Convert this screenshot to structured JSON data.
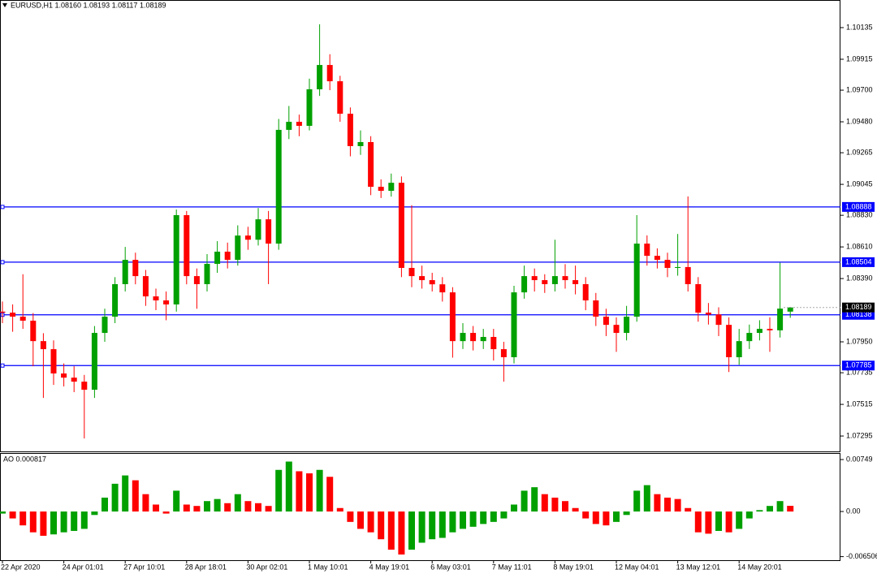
{
  "chart_data": [
    {
      "type": "candlestick",
      "title": "EURUSD,H1  1.08160 1.08193 1.08117 1.08189",
      "categories": [
        "22 Apr 2020",
        null,
        null,
        null,
        null,
        null,
        "24 Apr 01:01",
        null,
        null,
        null,
        null,
        null,
        "27 Apr 10:01",
        null,
        null,
        null,
        null,
        null,
        "28 Apr 18:01",
        null,
        null,
        null,
        null,
        null,
        "30 Apr 02:01",
        null,
        null,
        null,
        null,
        null,
        "1 May 10:01",
        null,
        null,
        null,
        null,
        null,
        "4 May 19:01",
        null,
        null,
        null,
        null,
        null,
        "6 May 03:01",
        null,
        null,
        null,
        null,
        null,
        "7 May 11:01",
        null,
        null,
        null,
        null,
        null,
        "8 May 19:01",
        null,
        null,
        null,
        null,
        null,
        "12 May 04:01",
        null,
        null,
        null,
        null,
        null,
        "13 May 12:01",
        null,
        null,
        null,
        null,
        null,
        "14 May 20:01",
        null,
        null,
        null,
        null,
        null
      ],
      "open": [
        1.0816,
        1.08153,
        1.08125,
        1.08097,
        1.07955,
        1.07899,
        1.0773,
        1.07701,
        1.07673,
        1.07617,
        1.08012,
        1.08125,
        1.08351,
        1.0852,
        1.08407,
        1.08266,
        1.08238,
        1.0821,
        1.08831,
        1.08407,
        1.08351,
        1.08492,
        1.08577,
        1.0852,
        1.08689,
        1.0866,
        1.08802,
        1.08633,
        1.09424,
        1.0948,
        1.09452,
        1.09706,
        1.09875,
        1.09762,
        1.09536,
        1.09311,
        1.09339,
        1.09028,
        1.09,
        1.09056,
        1.08464,
        1.08407,
        1.08379,
        1.0835,
        1.08294,
        1.07955,
        1.08012,
        1.07955,
        1.07984,
        1.07899,
        1.07843,
        1.08294,
        1.08407,
        1.08379,
        1.08351,
        1.08407,
        1.08379,
        1.08351,
        1.08238,
        1.08125,
        1.08068,
        1.08012,
        1.08125,
        1.08633,
        1.08548,
        1.0852,
        1.08464,
        1.0847,
        1.08351,
        1.08153,
        1.0814,
        1.08068,
        1.07843,
        1.07955,
        1.08012,
        1.0804,
        1.0803,
        1.0816
      ],
      "high": [
        1.0823,
        1.0821,
        1.0842,
        1.0815,
        1.0801,
        1.0796,
        1.078,
        1.0778,
        1.0772,
        1.0806,
        1.0818,
        1.084,
        1.0861,
        1.0857,
        1.0845,
        1.0832,
        1.083,
        1.0887,
        1.0886,
        1.0846,
        1.0856,
        1.0865,
        1.0864,
        1.0876,
        1.0875,
        1.0888,
        1.0886,
        1.095,
        1.0959,
        1.0953,
        1.0978,
        1.10158,
        1.0995,
        1.098,
        1.0958,
        1.0942,
        1.0938,
        1.0908,
        1.0912,
        1.091,
        1.089,
        1.0848,
        1.0843,
        1.084,
        1.0833,
        1.0808,
        1.0806,
        1.0804,
        1.0804,
        1.0795,
        1.0834,
        1.0848,
        1.0846,
        1.0842,
        1.0866,
        1.0849,
        1.0848,
        1.084,
        1.0829,
        1.0818,
        1.0812,
        1.082,
        1.08831,
        1.0869,
        1.086,
        1.0857,
        1.087,
        1.08961,
        1.084,
        1.0822,
        1.0819,
        1.0812,
        1.0804,
        1.0807,
        1.081,
        1.0812,
        1.085,
        1.08193
      ],
      "low": [
        1.0808,
        1.0802,
        1.0804,
        1.0778,
        1.0756,
        1.0765,
        1.0764,
        1.076,
        1.07278,
        1.0756,
        1.0795,
        1.0808,
        1.083,
        1.0835,
        1.082,
        1.0817,
        1.081,
        1.0816,
        1.0835,
        1.0818,
        1.083,
        1.0843,
        1.0846,
        1.0848,
        1.0859,
        1.0862,
        1.08351,
        1.0859,
        1.0936,
        1.0938,
        1.0942,
        1.0966,
        1.097,
        1.0948,
        1.0924,
        1.0925,
        1.0897,
        1.0895,
        1.0896,
        1.084,
        1.0833,
        1.0832,
        1.083,
        1.0823,
        1.0784,
        1.079,
        1.0789,
        1.079,
        1.0782,
        1.07673,
        1.078,
        1.0825,
        1.083,
        1.0829,
        1.083,
        1.0832,
        1.0828,
        1.0817,
        1.0806,
        1.0799,
        1.0788,
        1.0796,
        1.0809,
        1.0848,
        1.0846,
        1.084,
        1.0841,
        1.083,
        1.0809,
        1.0807,
        1.0799,
        1.0774,
        1.0779,
        1.079,
        1.0796,
        1.0788,
        1.0798,
        1.08117
      ],
      "close": [
        1.08153,
        1.08125,
        1.08097,
        1.07955,
        1.07899,
        1.0773,
        1.07701,
        1.07673,
        1.07617,
        1.08012,
        1.08125,
        1.08351,
        1.0852,
        1.08407,
        1.08266,
        1.08238,
        1.0821,
        1.08831,
        1.08407,
        1.08351,
        1.08492,
        1.08577,
        1.0852,
        1.08689,
        1.0866,
        1.08802,
        1.08633,
        1.09424,
        1.0948,
        1.09452,
        1.09706,
        1.09875,
        1.09762,
        1.09536,
        1.09311,
        1.09339,
        1.09028,
        1.09,
        1.09056,
        1.08464,
        1.08407,
        1.08379,
        1.0835,
        1.08294,
        1.07955,
        1.08012,
        1.07955,
        1.07984,
        1.07899,
        1.07843,
        1.08294,
        1.08407,
        1.08379,
        1.08351,
        1.08407,
        1.08379,
        1.08351,
        1.08238,
        1.08125,
        1.08068,
        1.08012,
        1.08125,
        1.08633,
        1.08548,
        1.0852,
        1.08464,
        1.0847,
        1.08351,
        1.08153,
        1.0814,
        1.08068,
        1.07843,
        1.07955,
        1.08012,
        1.0804,
        1.0803,
        1.08181,
        1.08189
      ],
      "up_color": "#00a000",
      "down_color": "#ff0000",
      "ylim": [
        1.07188,
        1.10327
      ],
      "yticks": [
        1.10135,
        1.09915,
        {
          "value": 1.097,
          "label": "1.09700"
        },
        {
          "value": 1.0948,
          "label": "1.09480"
        },
        1.09265,
        1.09045,
        {
          "value": 1.0883,
          "label": "1.08830"
        },
        {
          "value": 1.0861,
          "label": "1.08610"
        },
        {
          "value": 1.0839,
          "label": "1.08390"
        },
        {
          "value": 1.0795,
          "label": "1.07950"
        },
        1.07735,
        1.07515,
        1.07295
      ],
      "hlines": [
        1.08888,
        1.08504,
        1.08138,
        1.07785
      ],
      "hline_color": "#0000ff",
      "last_price": 1.08189
    },
    {
      "type": "histogram",
      "title": "AO 0.000817",
      "values": [
        -0.0003,
        -0.001,
        -0.002,
        -0.003,
        -0.0035,
        -0.0033,
        -0.003,
        -0.0028,
        -0.0025,
        -0.0005,
        0.002,
        0.004,
        0.0052,
        0.0045,
        0.0025,
        0.001,
        -0.0003,
        0.003,
        0.001,
        0.0008,
        0.0015,
        0.0018,
        0.0012,
        0.0025,
        0.0015,
        0.0012,
        0.0008,
        0.006,
        0.0072,
        0.0058,
        0.0055,
        0.006,
        0.005,
        0.0005,
        -0.0015,
        -0.0025,
        -0.003,
        -0.004,
        -0.0055,
        -0.0062,
        -0.0055,
        -0.0045,
        -0.004,
        -0.0038,
        -0.003,
        -0.0025,
        -0.0022,
        -0.0018,
        -0.0015,
        -0.001,
        0.001,
        0.003,
        0.0035,
        0.0025,
        0.002,
        0.0015,
        0.0005,
        -0.001,
        -0.0018,
        -0.002,
        -0.0015,
        -0.0005,
        0.003,
        0.0038,
        0.0025,
        0.002,
        0.0018,
        0.0005,
        -0.003,
        -0.0032,
        -0.0028,
        -0.003,
        -0.0025,
        -0.001,
        0.0002,
        0.0008,
        0.0015,
        0.000817
      ],
      "up_color": "#00a000",
      "down_color": "#ff0000",
      "ylim": [
        -0.00702,
        0.00843
      ],
      "yticks": [
        0.00749,
        {
          "value": 0,
          "label": "0.00"
        },
        -0.006506
      ]
    }
  ]
}
